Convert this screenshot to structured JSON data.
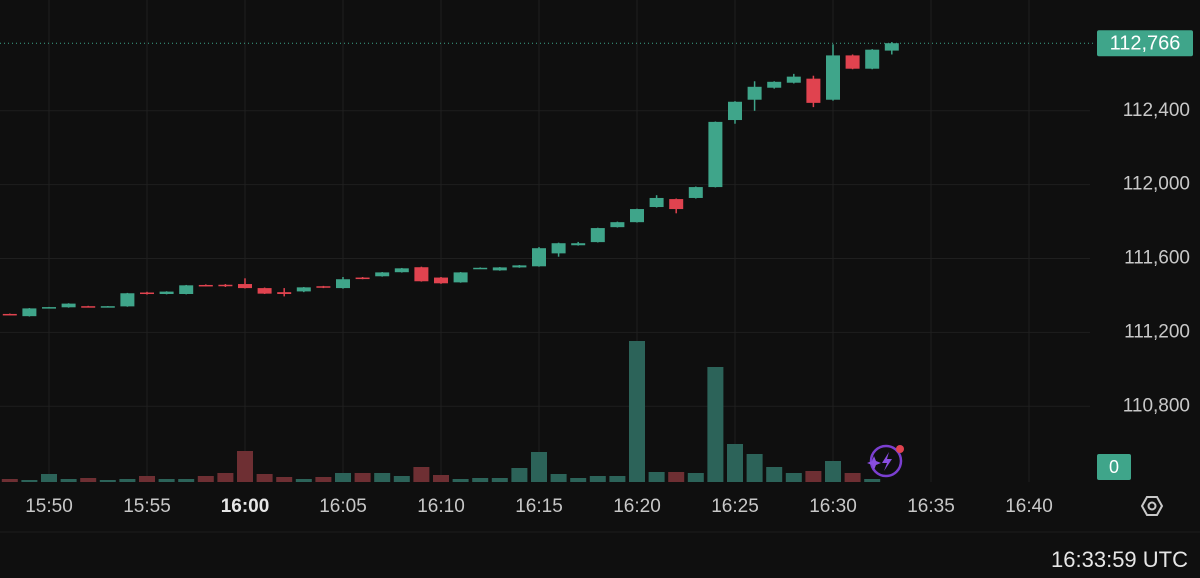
{
  "chart_data": {
    "type": "candlestick",
    "x": [
      "15:48",
      "15:49",
      "15:50",
      "15:51",
      "15:52",
      "15:53",
      "15:54",
      "15:55",
      "15:56",
      "15:57",
      "15:58",
      "15:59",
      "16:00",
      "16:01",
      "16:02",
      "16:03",
      "16:04",
      "16:05",
      "16:06",
      "16:07",
      "16:08",
      "16:09",
      "16:10",
      "16:11",
      "16:12",
      "16:13",
      "16:14",
      "16:15",
      "16:16",
      "16:17",
      "16:18",
      "16:19",
      "16:20",
      "16:21",
      "16:22",
      "16:23",
      "16:24",
      "16:25",
      "16:26",
      "16:27",
      "16:28",
      "16:29",
      "16:30",
      "16:31",
      "16:32",
      "16:33"
    ],
    "open": [
      111300,
      111288,
      111333,
      111336,
      111342,
      111339,
      111341,
      111416,
      111408,
      111408,
      111457,
      111458,
      111462,
      111440,
      111418,
      111422,
      111450,
      111440,
      111497,
      111504,
      111526,
      111553,
      111497,
      111471,
      111546,
      111536,
      111552,
      111558,
      111628,
      111672,
      111689,
      111770,
      111797,
      111879,
      111922,
      111928,
      111987,
      112350,
      112460,
      112525,
      112552,
      112574,
      112460,
      112700,
      112628,
      112726
    ],
    "high": [
      111302,
      111332,
      111338,
      111358,
      111344,
      111343,
      111414,
      111420,
      111423,
      111457,
      111460,
      111462,
      111493,
      111443,
      111440,
      111446,
      111452,
      111500,
      111500,
      111527,
      111549,
      111556,
      111500,
      111527,
      111552,
      111554,
      111565,
      111662,
      111686,
      111690,
      111767,
      111800,
      111870,
      111943,
      111925,
      111990,
      112342,
      112452,
      112560,
      112560,
      112600,
      112590,
      112760,
      112705,
      112734,
      112772
    ],
    "low": [
      111294,
      111286,
      111331,
      111334,
      111337,
      111337,
      111339,
      111405,
      111406,
      111406,
      111450,
      111446,
      111438,
      111408,
      111395,
      111418,
      111440,
      111437,
      111488,
      111502,
      111524,
      111475,
      111463,
      111469,
      111544,
      111534,
      111550,
      111556,
      111610,
      111670,
      111687,
      111768,
      111795,
      111876,
      111845,
      111925,
      111985,
      112330,
      112400,
      112520,
      112548,
      112420,
      112455,
      112625,
      112625,
      112705
    ],
    "close": [
      111296,
      111330,
      111337,
      111356,
      111339,
      111342,
      111412,
      111410,
      111421,
      111455,
      111452,
      111450,
      111440,
      111410,
      111408,
      111444,
      111442,
      111488,
      111490,
      111525,
      111547,
      111477,
      111466,
      111525,
      111550,
      111552,
      111563,
      111656,
      111683,
      111683,
      111765,
      111797,
      111868,
      111928,
      111868,
      111987,
      112340,
      112449,
      112530,
      112557,
      112585,
      112443,
      112700,
      112628,
      112731,
      112766
    ],
    "volume": [
      3,
      2,
      8,
      3,
      4,
      2,
      3,
      6,
      3,
      3,
      6,
      9,
      31,
      8,
      5,
      3,
      5,
      9,
      9,
      9,
      6,
      15,
      7,
      3,
      4,
      4,
      14,
      30,
      8,
      4,
      6,
      6,
      141,
      10,
      10,
      9,
      115,
      38,
      28,
      15,
      9,
      11,
      21,
      9,
      3,
      0
    ],
    "ylim": [
      110390,
      113000
    ],
    "vlim": [
      0,
      300
    ],
    "yticks": [
      {
        "value": 112400,
        "label": "112,400"
      },
      {
        "value": 112000,
        "label": "112,000"
      },
      {
        "value": 111600,
        "label": "111,600"
      },
      {
        "value": 111200,
        "label": "111,200"
      },
      {
        "value": 110800,
        "label": "110,800"
      }
    ],
    "xticks": [
      "15:50",
      "15:55",
      "16:00",
      "16:05",
      "16:10",
      "16:15",
      "16:20",
      "16:25",
      "16:30",
      "16:35",
      "16:40"
    ],
    "major_xtick_index": 2,
    "last_price": 112766,
    "last_price_label": "112,766",
    "last_volume": 0,
    "clock": "16:33:59 UTC",
    "up_color": "#3fa58a",
    "down_color": "#e0434f",
    "up_volume_color": "#2c6359",
    "down_volume_color": "#6e2f33",
    "grid": true
  }
}
